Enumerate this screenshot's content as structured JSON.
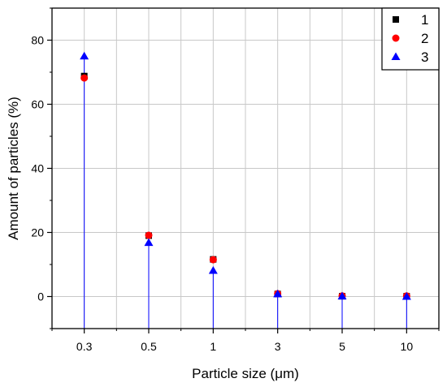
{
  "chart_data": {
    "type": "scatter",
    "categories": [
      "0.3",
      "0.5",
      "1",
      "3",
      "5",
      "10"
    ],
    "xlabel": "Particle size (μm)",
    "ylabel": "Amount of particles (%)",
    "ylim": [
      -10,
      90
    ],
    "yticks": [
      0,
      20,
      40,
      60,
      80
    ],
    "grid": true,
    "legend_position": "top-right",
    "drop_lines": true,
    "series": [
      {
        "name": "1",
        "marker": "square",
        "color": "#000000",
        "values": [
          68.8,
          19.0,
          11.6,
          0.8,
          0.1,
          0.1
        ]
      },
      {
        "name": "2",
        "marker": "circle",
        "color": "#ff0000",
        "values": [
          68.2,
          19.1,
          11.5,
          0.9,
          0.2,
          0.2
        ]
      },
      {
        "name": "3",
        "marker": "triangle",
        "color": "#0000ff",
        "values": [
          75.0,
          16.8,
          8.1,
          0.8,
          0.1,
          0.0
        ]
      }
    ],
    "drop_line_color": "#0000ff"
  }
}
